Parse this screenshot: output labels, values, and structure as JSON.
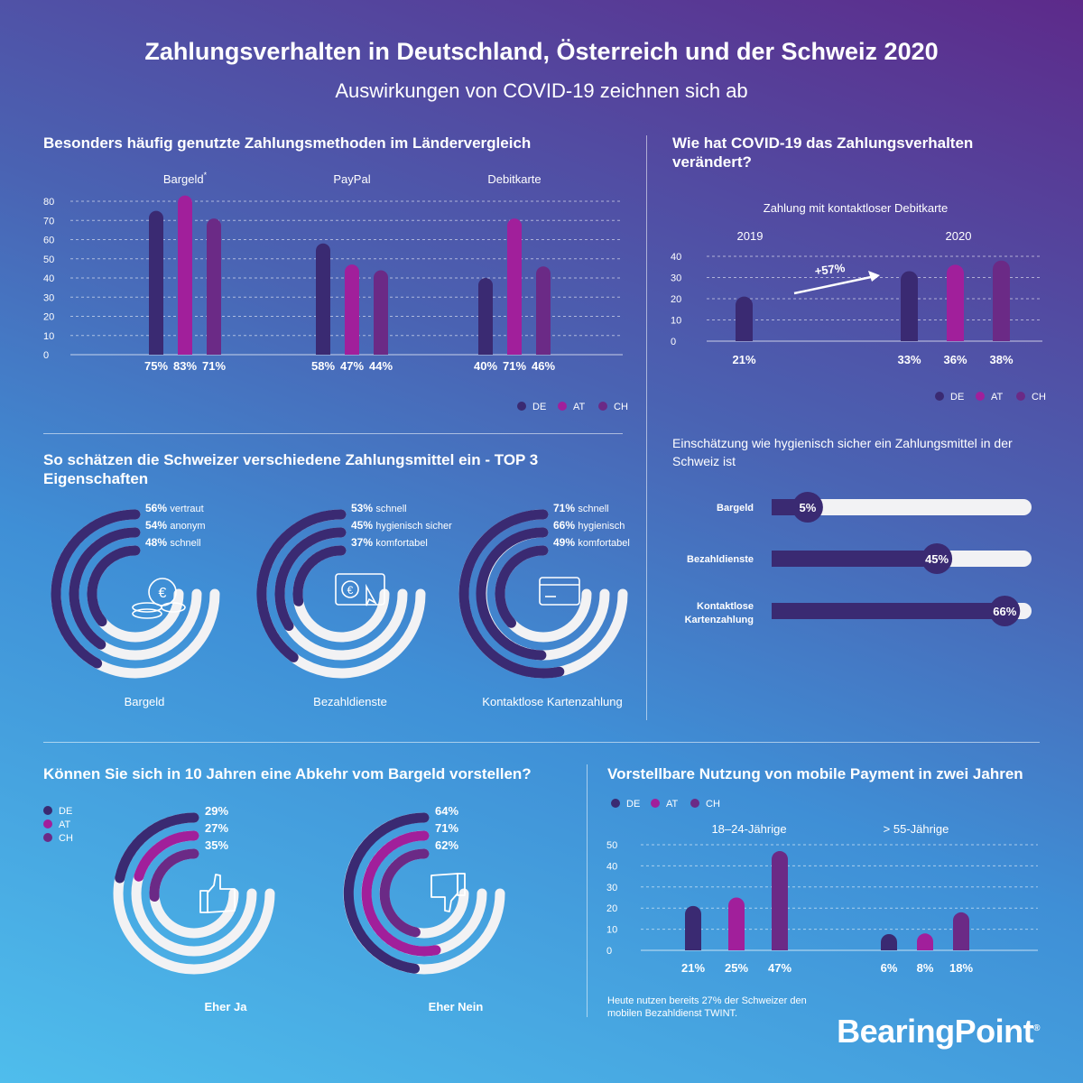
{
  "title": "Zahlungsverhalten in Deutschland, Österreich und der Schweiz  2020",
  "subtitle": "Auswirkungen von COVID-19 zeichnen sich ab",
  "colors": {
    "de": "#3a2a72",
    "at": "#a11f9b",
    "ch": "#6b2a86",
    "white": "#f2f2f4"
  },
  "legend": {
    "de": "DE",
    "at": "AT",
    "ch": "CH"
  },
  "methods": {
    "title": "Besonders häufig genutzte Zahlungsmethoden im Ländervergleich",
    "chart_data": {
      "type": "bar",
      "categories": [
        "Bargeld*",
        "PayPal",
        "Debitkarte"
      ],
      "series": [
        {
          "name": "DE",
          "values": [
            75,
            58,
            40
          ]
        },
        {
          "name": "AT",
          "values": [
            83,
            47,
            71
          ]
        },
        {
          "name": "CH",
          "values": [
            71,
            44,
            46
          ]
        }
      ],
      "value_labels": [
        [
          "75%",
          "83%",
          "71%"
        ],
        [
          "58%",
          "47%",
          "44%"
        ],
        [
          "40%",
          "71%",
          "46%"
        ]
      ],
      "yticks": [
        "0",
        "10",
        "20",
        "30",
        "40",
        "50",
        "60",
        "70",
        "80"
      ],
      "ylim": [
        0,
        80
      ],
      "grid": true,
      "legend_position": "bottom-right"
    }
  },
  "covid": {
    "title": "Wie hat COVID-19 das Zahlungsverhalten verändert?",
    "chart_data": {
      "type": "bar",
      "title": "Zahlung mit kontaktloser Debitkarte",
      "groups": [
        "2019",
        "2020"
      ],
      "bars": [
        {
          "group": "2019",
          "series": "DE",
          "value": 21,
          "label": "21%"
        },
        {
          "group": "2020",
          "series": "DE",
          "value": 33,
          "label": "33%"
        },
        {
          "group": "2020",
          "series": "AT",
          "value": 36,
          "label": "36%"
        },
        {
          "group": "2020",
          "series": "CH",
          "value": 38,
          "label": "38%"
        }
      ],
      "annotation": "+57%",
      "yticks": [
        "0",
        "10",
        "20",
        "30",
        "40"
      ],
      "ylim": [
        0,
        40
      ],
      "grid": true,
      "legend_position": "bottom-right"
    }
  },
  "swiss": {
    "title": "So schätzen die Schweizer verschiedene Zahlungsmittel ein - TOP 3 Eigenschaften",
    "items": [
      {
        "name": "Bargeld",
        "icon": "coins-euro-icon",
        "props": [
          {
            "pct": "56%",
            "label": "vertraut",
            "value": 56
          },
          {
            "pct": "54%",
            "label": "anonym",
            "value": 54
          },
          {
            "pct": "48%",
            "label": "schnell",
            "value": 48
          }
        ]
      },
      {
        "name": "Bezahldienste",
        "icon": "euro-card-cursor-icon",
        "props": [
          {
            "pct": "53%",
            "label": "schnell",
            "value": 53
          },
          {
            "pct": "45%",
            "label": "hygienisch sicher",
            "value": 45
          },
          {
            "pct": "37%",
            "label": "komfortabel",
            "value": 37
          }
        ]
      },
      {
        "name": "Kontaktlose Kartenzahlung",
        "icon": "credit-card-icon",
        "props": [
          {
            "pct": "71%",
            "label": "schnell",
            "value": 71
          },
          {
            "pct": "66%",
            "label": "hygienisch",
            "value": 66
          },
          {
            "pct": "49%",
            "label": "komfortabel",
            "value": 49
          }
        ]
      }
    ]
  },
  "hygiene": {
    "title": "Einschätzung wie hygienisch sicher ein Zahlungsmittel in der Schweiz ist",
    "bars": [
      {
        "label": "Bargeld",
        "value": 5,
        "pct": "5%"
      },
      {
        "label": "Bezahldienste",
        "value": 45,
        "pct": "45%"
      },
      {
        "label": "Kontaktlose Kartenzahlung",
        "value": 66,
        "pct": "66%"
      }
    ]
  },
  "abkehr": {
    "title": "Können Sie sich in 10 Jahren eine Abkehr vom Bargeld vorstellen?",
    "items": [
      {
        "name": "Eher Ja",
        "icon": "thumbs-up-icon",
        "values": [
          {
            "pct": "29%",
            "value": 29
          },
          {
            "pct": "27%",
            "value": 27
          },
          {
            "pct": "35%",
            "value": 35
          }
        ]
      },
      {
        "name": "Eher Nein",
        "icon": "thumbs-down-icon",
        "values": [
          {
            "pct": "64%",
            "value": 64
          },
          {
            "pct": "71%",
            "value": 71
          },
          {
            "pct": "62%",
            "value": 62
          }
        ]
      }
    ]
  },
  "mobile": {
    "title": "Vorstellbare Nutzung von mobile Payment in zwei Jahren",
    "chart_data": {
      "type": "bar",
      "categories": [
        "18–24-Jährige",
        "> 55-Jährige"
      ],
      "series": [
        {
          "name": "DE",
          "values": [
            21,
            6
          ]
        },
        {
          "name": "AT",
          "values": [
            25,
            8
          ]
        },
        {
          "name": "CH",
          "values": [
            47,
            18
          ]
        }
      ],
      "value_labels": [
        [
          "21%",
          "25%",
          "47%"
        ],
        [
          "6%",
          "8%",
          "18%"
        ]
      ],
      "yticks": [
        "0",
        "10",
        "20",
        "30",
        "40",
        "50"
      ],
      "ylim": [
        0,
        50
      ],
      "grid": true,
      "legend_position": "top-left"
    },
    "note": "Heute nutzen bereits 27% der Schweizer den mobilen Bezahldienst TWINT."
  },
  "brand": "BearingPoint"
}
